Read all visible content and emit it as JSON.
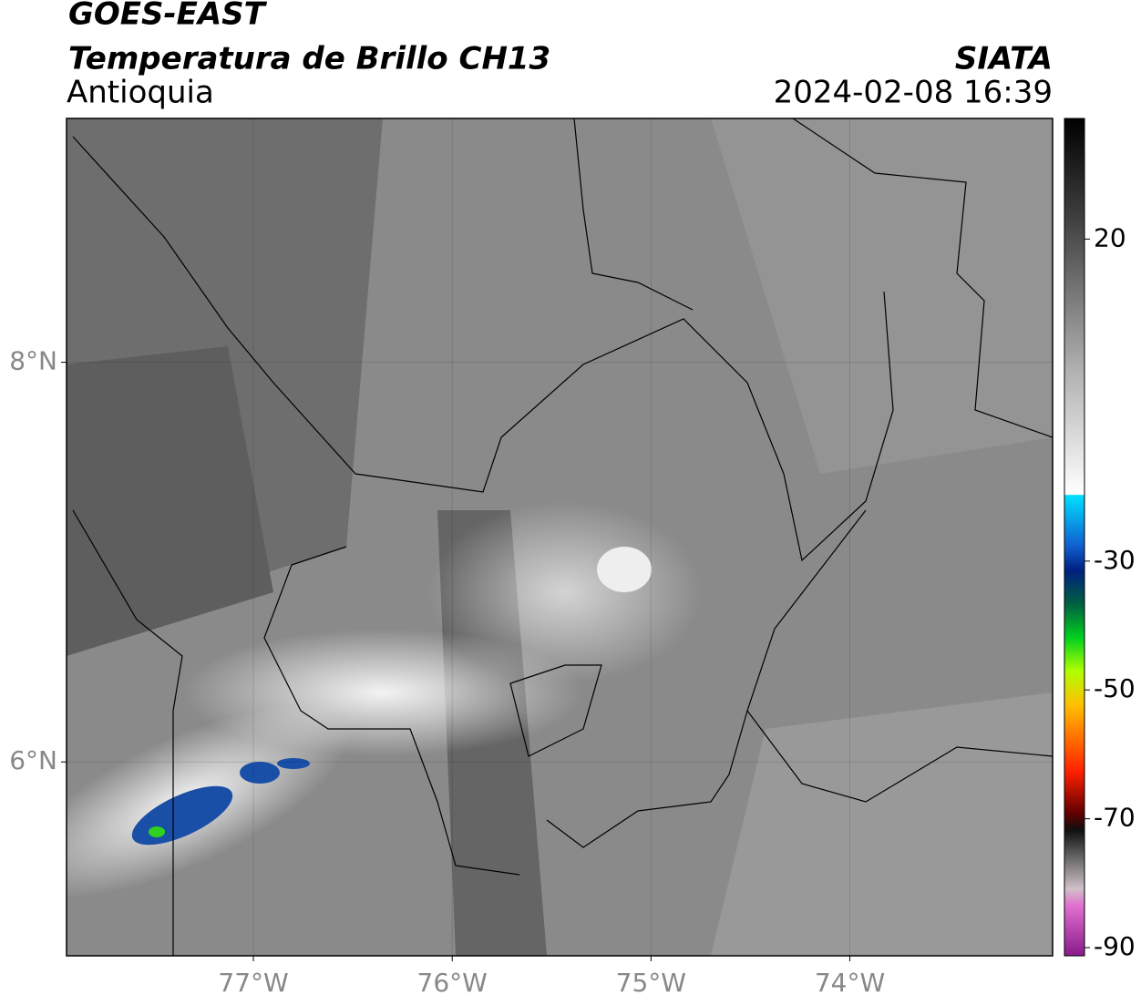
{
  "header": {
    "source": "GOES-EAST",
    "product": "Temperatura de Brillo CH13",
    "agency": "SIATA",
    "region": "Antioquia",
    "datetime": "2024-02-08 16:39"
  },
  "map": {
    "xlim": [
      -77.94,
      -72.98
    ],
    "ylim": [
      5.03,
      9.22
    ],
    "xticks": [
      {
        "value": -77,
        "label": "77°W"
      },
      {
        "value": -76,
        "label": "76°W"
      },
      {
        "value": -75,
        "label": "75°W"
      },
      {
        "value": -74,
        "label": "74°W"
      }
    ],
    "yticks": [
      {
        "value": 8,
        "label": "8°N"
      },
      {
        "value": 6,
        "label": "6°N"
      }
    ],
    "grid": true
  },
  "colorbar": {
    "lim": [
      -90,
      40
    ],
    "ticks": [
      20,
      -30,
      -50,
      -70,
      -90
    ]
  }
}
